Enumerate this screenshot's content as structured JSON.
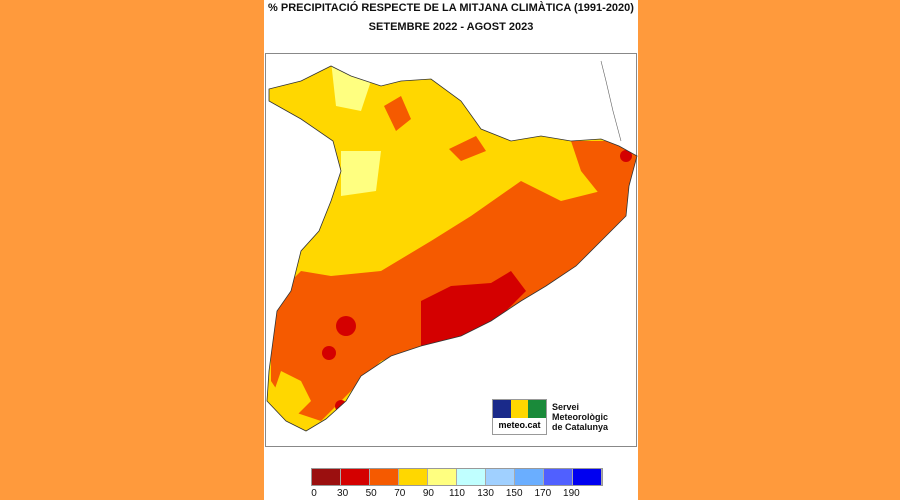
{
  "title": "% PRECIPITACIÓ RESPECTE DE LA MITJANA CLIMÀTICA (1991-2020)",
  "subtitle": "SETEMBRE 2022 - AGOST 2023",
  "logo": {
    "text": "meteo.cat",
    "service_line1": "Servei Meteorològic",
    "service_line2": "de Catalunya"
  },
  "legend": {
    "colors": [
      "#9b0f0f",
      "#d40000",
      "#f55a00",
      "#ffd700",
      "#ffff80",
      "#c0ffff",
      "#a0d0ff",
      "#6aaeff",
      "#5060ff",
      "#0000f0"
    ],
    "labels": [
      "0",
      "30",
      "50",
      "70",
      "90",
      "110",
      "130",
      "150",
      "170",
      "190"
    ]
  },
  "background_color": "#ff9a3c"
}
